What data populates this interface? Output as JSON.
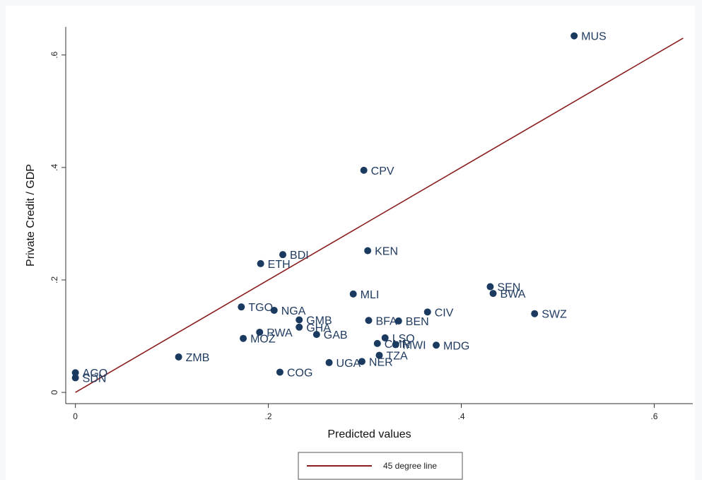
{
  "colors": {
    "marker": "#1a3a60",
    "label": "#1f3a5f",
    "reference_line": "#8b1e1e",
    "axis": "#333333"
  },
  "chart_data": {
    "type": "scatter",
    "xlabel": "Predicted values",
    "ylabel": "Private Credit / GDP",
    "xlim": [
      -0.01,
      0.64
    ],
    "ylim": [
      -0.02,
      0.65
    ],
    "xticks": [
      0,
      0.2,
      0.4,
      0.6
    ],
    "yticks": [
      0,
      0.2,
      0.4,
      0.6
    ],
    "xtick_labels": [
      "0",
      ".2",
      ".4",
      ".6"
    ],
    "ytick_labels": [
      "0",
      ".2",
      ".4",
      ".6"
    ],
    "grid": false,
    "legend_position": "bottom-center",
    "legend": [
      {
        "name": "45 degree line",
        "type": "line"
      }
    ],
    "reference_line": {
      "name": "45 degree line",
      "x": [
        0,
        0.63
      ],
      "y": [
        0,
        0.63
      ]
    },
    "points": [
      {
        "label": "MUS",
        "x": 0.517,
        "y": 0.634
      },
      {
        "label": "CPV",
        "x": 0.299,
        "y": 0.395
      },
      {
        "label": "KEN",
        "x": 0.303,
        "y": 0.252
      },
      {
        "label": "BDI",
        "x": 0.215,
        "y": 0.245
      },
      {
        "label": "ETH",
        "x": 0.192,
        "y": 0.229
      },
      {
        "label": "SEN",
        "x": 0.43,
        "y": 0.188
      },
      {
        "label": "BWA",
        "x": 0.433,
        "y": 0.176
      },
      {
        "label": "MLI",
        "x": 0.288,
        "y": 0.175
      },
      {
        "label": "TGO",
        "x": 0.172,
        "y": 0.152
      },
      {
        "label": "NGA",
        "x": 0.206,
        "y": 0.146
      },
      {
        "label": "CIV",
        "x": 0.365,
        "y": 0.143
      },
      {
        "label": "SWZ",
        "x": 0.476,
        "y": 0.14
      },
      {
        "label": "GMB",
        "x": 0.232,
        "y": 0.129
      },
      {
        "label": "BFA",
        "x": 0.304,
        "y": 0.128
      },
      {
        "label": "BEN",
        "x": 0.335,
        "y": 0.127
      },
      {
        "label": "GHA",
        "x": 0.232,
        "y": 0.116
      },
      {
        "label": "RWA",
        "x": 0.191,
        "y": 0.107
      },
      {
        "label": "GAB",
        "x": 0.25,
        "y": 0.103
      },
      {
        "label": "MOZ",
        "x": 0.174,
        "y": 0.096
      },
      {
        "label": "LSO",
        "x": 0.321,
        "y": 0.097
      },
      {
        "label": "CMR",
        "x": 0.313,
        "y": 0.087
      },
      {
        "label": "MWI",
        "x": 0.332,
        "y": 0.085
      },
      {
        "label": "MDG",
        "x": 0.374,
        "y": 0.084
      },
      {
        "label": "TZA",
        "x": 0.315,
        "y": 0.066
      },
      {
        "label": "ZMB",
        "x": 0.107,
        "y": 0.063
      },
      {
        "label": "NER",
        "x": 0.297,
        "y": 0.055
      },
      {
        "label": "UGA",
        "x": 0.263,
        "y": 0.053
      },
      {
        "label": "COG",
        "x": 0.212,
        "y": 0.036
      },
      {
        "label": "AGO",
        "x": 0.0,
        "y": 0.035
      },
      {
        "label": "SDN",
        "x": 0.0,
        "y": 0.026
      }
    ]
  }
}
